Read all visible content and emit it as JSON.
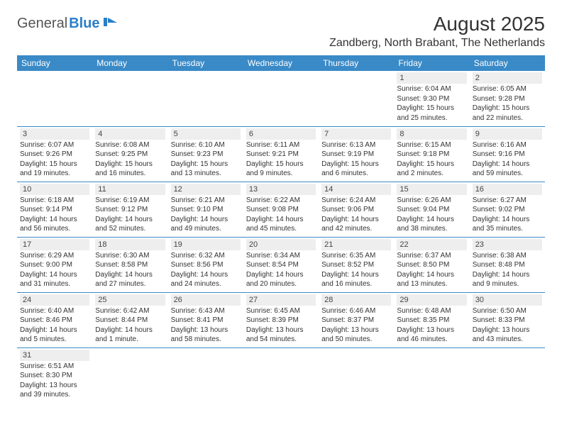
{
  "logo": {
    "general": "General",
    "blue": "Blue"
  },
  "title": "August 2025",
  "location": "Zandberg, North Brabant, The Netherlands",
  "colors": {
    "header_bg": "#3a8ac7",
    "header_text": "#ffffff",
    "daynum_bg": "#eeeeee",
    "border": "#3a8ac7",
    "logo_blue": "#2a7fc9"
  },
  "dayNames": [
    "Sunday",
    "Monday",
    "Tuesday",
    "Wednesday",
    "Thursday",
    "Friday",
    "Saturday"
  ],
  "weeks": [
    [
      {
        "empty": true
      },
      {
        "empty": true
      },
      {
        "empty": true
      },
      {
        "empty": true
      },
      {
        "empty": true
      },
      {
        "day": "1",
        "sunrise": "Sunrise: 6:04 AM",
        "sunset": "Sunset: 9:30 PM",
        "daylight": "Daylight: 15 hours and 25 minutes."
      },
      {
        "day": "2",
        "sunrise": "Sunrise: 6:05 AM",
        "sunset": "Sunset: 9:28 PM",
        "daylight": "Daylight: 15 hours and 22 minutes."
      }
    ],
    [
      {
        "day": "3",
        "sunrise": "Sunrise: 6:07 AM",
        "sunset": "Sunset: 9:26 PM",
        "daylight": "Daylight: 15 hours and 19 minutes."
      },
      {
        "day": "4",
        "sunrise": "Sunrise: 6:08 AM",
        "sunset": "Sunset: 9:25 PM",
        "daylight": "Daylight: 15 hours and 16 minutes."
      },
      {
        "day": "5",
        "sunrise": "Sunrise: 6:10 AM",
        "sunset": "Sunset: 9:23 PM",
        "daylight": "Daylight: 15 hours and 13 minutes."
      },
      {
        "day": "6",
        "sunrise": "Sunrise: 6:11 AM",
        "sunset": "Sunset: 9:21 PM",
        "daylight": "Daylight: 15 hours and 9 minutes."
      },
      {
        "day": "7",
        "sunrise": "Sunrise: 6:13 AM",
        "sunset": "Sunset: 9:19 PM",
        "daylight": "Daylight: 15 hours and 6 minutes."
      },
      {
        "day": "8",
        "sunrise": "Sunrise: 6:15 AM",
        "sunset": "Sunset: 9:18 PM",
        "daylight": "Daylight: 15 hours and 2 minutes."
      },
      {
        "day": "9",
        "sunrise": "Sunrise: 6:16 AM",
        "sunset": "Sunset: 9:16 PM",
        "daylight": "Daylight: 14 hours and 59 minutes."
      }
    ],
    [
      {
        "day": "10",
        "sunrise": "Sunrise: 6:18 AM",
        "sunset": "Sunset: 9:14 PM",
        "daylight": "Daylight: 14 hours and 56 minutes."
      },
      {
        "day": "11",
        "sunrise": "Sunrise: 6:19 AM",
        "sunset": "Sunset: 9:12 PM",
        "daylight": "Daylight: 14 hours and 52 minutes."
      },
      {
        "day": "12",
        "sunrise": "Sunrise: 6:21 AM",
        "sunset": "Sunset: 9:10 PM",
        "daylight": "Daylight: 14 hours and 49 minutes."
      },
      {
        "day": "13",
        "sunrise": "Sunrise: 6:22 AM",
        "sunset": "Sunset: 9:08 PM",
        "daylight": "Daylight: 14 hours and 45 minutes."
      },
      {
        "day": "14",
        "sunrise": "Sunrise: 6:24 AM",
        "sunset": "Sunset: 9:06 PM",
        "daylight": "Daylight: 14 hours and 42 minutes."
      },
      {
        "day": "15",
        "sunrise": "Sunrise: 6:26 AM",
        "sunset": "Sunset: 9:04 PM",
        "daylight": "Daylight: 14 hours and 38 minutes."
      },
      {
        "day": "16",
        "sunrise": "Sunrise: 6:27 AM",
        "sunset": "Sunset: 9:02 PM",
        "daylight": "Daylight: 14 hours and 35 minutes."
      }
    ],
    [
      {
        "day": "17",
        "sunrise": "Sunrise: 6:29 AM",
        "sunset": "Sunset: 9:00 PM",
        "daylight": "Daylight: 14 hours and 31 minutes."
      },
      {
        "day": "18",
        "sunrise": "Sunrise: 6:30 AM",
        "sunset": "Sunset: 8:58 PM",
        "daylight": "Daylight: 14 hours and 27 minutes."
      },
      {
        "day": "19",
        "sunrise": "Sunrise: 6:32 AM",
        "sunset": "Sunset: 8:56 PM",
        "daylight": "Daylight: 14 hours and 24 minutes."
      },
      {
        "day": "20",
        "sunrise": "Sunrise: 6:34 AM",
        "sunset": "Sunset: 8:54 PM",
        "daylight": "Daylight: 14 hours and 20 minutes."
      },
      {
        "day": "21",
        "sunrise": "Sunrise: 6:35 AM",
        "sunset": "Sunset: 8:52 PM",
        "daylight": "Daylight: 14 hours and 16 minutes."
      },
      {
        "day": "22",
        "sunrise": "Sunrise: 6:37 AM",
        "sunset": "Sunset: 8:50 PM",
        "daylight": "Daylight: 14 hours and 13 minutes."
      },
      {
        "day": "23",
        "sunrise": "Sunrise: 6:38 AM",
        "sunset": "Sunset: 8:48 PM",
        "daylight": "Daylight: 14 hours and 9 minutes."
      }
    ],
    [
      {
        "day": "24",
        "sunrise": "Sunrise: 6:40 AM",
        "sunset": "Sunset: 8:46 PM",
        "daylight": "Daylight: 14 hours and 5 minutes."
      },
      {
        "day": "25",
        "sunrise": "Sunrise: 6:42 AM",
        "sunset": "Sunset: 8:44 PM",
        "daylight": "Daylight: 14 hours and 1 minute."
      },
      {
        "day": "26",
        "sunrise": "Sunrise: 6:43 AM",
        "sunset": "Sunset: 8:41 PM",
        "daylight": "Daylight: 13 hours and 58 minutes."
      },
      {
        "day": "27",
        "sunrise": "Sunrise: 6:45 AM",
        "sunset": "Sunset: 8:39 PM",
        "daylight": "Daylight: 13 hours and 54 minutes."
      },
      {
        "day": "28",
        "sunrise": "Sunrise: 6:46 AM",
        "sunset": "Sunset: 8:37 PM",
        "daylight": "Daylight: 13 hours and 50 minutes."
      },
      {
        "day": "29",
        "sunrise": "Sunrise: 6:48 AM",
        "sunset": "Sunset: 8:35 PM",
        "daylight": "Daylight: 13 hours and 46 minutes."
      },
      {
        "day": "30",
        "sunrise": "Sunrise: 6:50 AM",
        "sunset": "Sunset: 8:33 PM",
        "daylight": "Daylight: 13 hours and 43 minutes."
      }
    ],
    [
      {
        "day": "31",
        "sunrise": "Sunrise: 6:51 AM",
        "sunset": "Sunset: 8:30 PM",
        "daylight": "Daylight: 13 hours and 39 minutes."
      },
      {
        "empty": true
      },
      {
        "empty": true
      },
      {
        "empty": true
      },
      {
        "empty": true
      },
      {
        "empty": true
      },
      {
        "empty": true
      }
    ]
  ]
}
